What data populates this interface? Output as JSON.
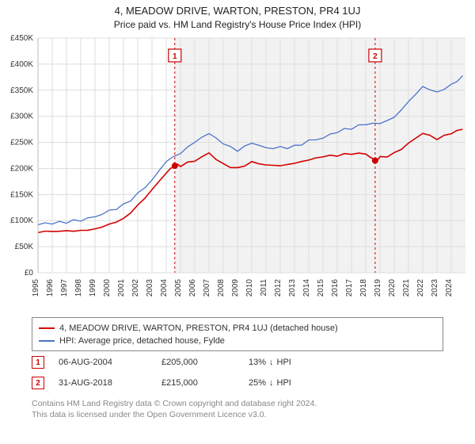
{
  "title": "4, MEADOW DRIVE, WARTON, PRESTON, PR4 1UJ",
  "subtitle": "Price paid vs. HM Land Registry's House Price Index (HPI)",
  "chart": {
    "type": "line",
    "background_color": "#ffffff",
    "plot_background_shaded": "#f2f2f2",
    "shaded_x_start": 2004.6,
    "shaded_x_end": 2025,
    "grid_color": "#dddddd",
    "xlim": [
      1995,
      2025
    ],
    "ylim": [
      0,
      450000
    ],
    "ytick_step": 50000,
    "y_prefix": "£",
    "y_suffix": "K",
    "y_ticks": [
      "£0",
      "£50K",
      "£100K",
      "£150K",
      "£200K",
      "£250K",
      "£300K",
      "£350K",
      "£400K",
      "£450K"
    ],
    "x_ticks": [
      "1995",
      "1996",
      "1997",
      "1998",
      "1999",
      "2000",
      "2001",
      "2002",
      "2003",
      "2004",
      "2005",
      "2006",
      "2007",
      "2008",
      "2009",
      "2010",
      "2011",
      "2012",
      "2013",
      "2014",
      "2015",
      "2016",
      "2017",
      "2018",
      "2019",
      "2020",
      "2021",
      "2022",
      "2023",
      "2024"
    ],
    "axis_fontsize": 10,
    "sale_marker_color": "#cc0000",
    "sale_markers": [
      {
        "n": "1",
        "x": 2004.6,
        "y": 205000
      },
      {
        "n": "2",
        "x": 2018.66,
        "y": 215000
      }
    ],
    "series": [
      {
        "name": "property",
        "label": "4, MEADOW DRIVE, WARTON, PRESTON, PR4 1UJ (detached house)",
        "color": "#d40000",
        "line_width": 1.6,
        "data": [
          [
            1995,
            77000
          ],
          [
            1996,
            77500
          ],
          [
            1997,
            79000
          ],
          [
            1998,
            81000
          ],
          [
            1999,
            86000
          ],
          [
            2000,
            95000
          ],
          [
            2001,
            105000
          ],
          [
            2002,
            128000
          ],
          [
            2003,
            158000
          ],
          [
            2004,
            190000
          ],
          [
            2004.6,
            205000
          ],
          [
            2005,
            205000
          ],
          [
            2006,
            215000
          ],
          [
            2007,
            228000
          ],
          [
            2008,
            208000
          ],
          [
            2009,
            200000
          ],
          [
            2010,
            215000
          ],
          [
            2011,
            208000
          ],
          [
            2012,
            207000
          ],
          [
            2013,
            208000
          ],
          [
            2014,
            215000
          ],
          [
            2015,
            220000
          ],
          [
            2016,
            225000
          ],
          [
            2017,
            228000
          ],
          [
            2018,
            230000
          ],
          [
            2018.66,
            215000
          ],
          [
            2019,
            222000
          ],
          [
            2020,
            228000
          ],
          [
            2021,
            250000
          ],
          [
            2022,
            268000
          ],
          [
            2023,
            258000
          ],
          [
            2024,
            265000
          ],
          [
            2024.8,
            275000
          ]
        ]
      },
      {
        "name": "hpi",
        "label": "HPI: Average price, detached house, Fylde",
        "color": "#4a74c9",
        "line_width": 1.3,
        "data": [
          [
            1995,
            92000
          ],
          [
            1996,
            93000
          ],
          [
            1997,
            97000
          ],
          [
            1998,
            101000
          ],
          [
            1999,
            108000
          ],
          [
            2000,
            118000
          ],
          [
            2001,
            130000
          ],
          [
            2002,
            152000
          ],
          [
            2003,
            180000
          ],
          [
            2004,
            215000
          ],
          [
            2005,
            230000
          ],
          [
            2006,
            248000
          ],
          [
            2007,
            265000
          ],
          [
            2008,
            245000
          ],
          [
            2009,
            235000
          ],
          [
            2010,
            250000
          ],
          [
            2011,
            242000
          ],
          [
            2012,
            240000
          ],
          [
            2013,
            243000
          ],
          [
            2014,
            252000
          ],
          [
            2015,
            260000
          ],
          [
            2016,
            270000
          ],
          [
            2017,
            278000
          ],
          [
            2018,
            282000
          ],
          [
            2019,
            285000
          ],
          [
            2020,
            295000
          ],
          [
            2021,
            330000
          ],
          [
            2022,
            358000
          ],
          [
            2023,
            350000
          ],
          [
            2024,
            360000
          ],
          [
            2024.8,
            378000
          ]
        ]
      }
    ]
  },
  "legend": {
    "border_color": "#888888",
    "items": [
      {
        "color": "#d40000",
        "label": "4, MEADOW DRIVE, WARTON, PRESTON, PR4 1UJ (detached house)"
      },
      {
        "color": "#4a74c9",
        "label": "HPI: Average price, detached house, Fylde"
      }
    ]
  },
  "sales": [
    {
      "n": "1",
      "date": "06-AUG-2004",
      "price": "£205,000",
      "diff_pct": "13%",
      "diff_dir": "↓",
      "diff_label": "HPI",
      "marker_color": "#cc0000"
    },
    {
      "n": "2",
      "date": "31-AUG-2018",
      "price": "£215,000",
      "diff_pct": "25%",
      "diff_dir": "↓",
      "diff_label": "HPI",
      "marker_color": "#cc0000"
    }
  ],
  "footer": {
    "line1": "Contains HM Land Registry data © Crown copyright and database right 2024.",
    "line2": "This data is licensed under the Open Government Licence v3.0.",
    "color": "#888888"
  }
}
